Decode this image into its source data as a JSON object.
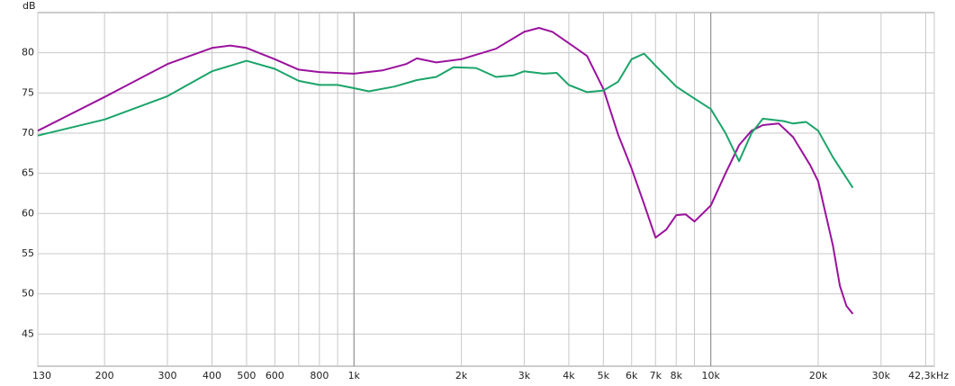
{
  "chart_data": {
    "type": "line",
    "y_label": "dB",
    "xscale": "log",
    "grid": true,
    "xlim": [
      130,
      42300
    ],
    "ylim": [
      41,
      85
    ],
    "xticks": [
      130,
      200,
      300,
      400,
      500,
      600,
      800,
      {
        "value": 1000,
        "label": "1k"
      },
      {
        "value": 2000,
        "label": "2k"
      },
      {
        "value": 3000,
        "label": "3k"
      },
      {
        "value": 4000,
        "label": "4k"
      },
      {
        "value": 5000,
        "label": "5k"
      },
      {
        "value": 6000,
        "label": "6k"
      },
      {
        "value": 7000,
        "label": "7k"
      },
      {
        "value": 8000,
        "label": "8k"
      },
      {
        "value": 10000,
        "label": "10k"
      },
      {
        "value": 20000,
        "label": "20k"
      },
      {
        "value": 30000,
        "label": "30k"
      },
      {
        "value": 42300,
        "label": "42,3kHz"
      }
    ],
    "x_minor_gridlines": [
      700,
      900,
      9000,
      40000
    ],
    "x_major_gridlines": [
      1000,
      10000
    ],
    "yticks": [
      45,
      50,
      55,
      60,
      65,
      70,
      75,
      80
    ],
    "series": [
      {
        "color": "#9b129d",
        "x": [
          130,
          200,
          300,
          400,
          450,
          500,
          600,
          700,
          800,
          1000,
          1200,
          1400,
          1500,
          1700,
          2000,
          2500,
          3000,
          3300,
          3600,
          4000,
          4500,
          5000,
          5500,
          6000,
          6500,
          7000,
          7500,
          8000,
          8500,
          9000,
          10000,
          11000,
          12000,
          13000,
          14000,
          15500,
          17000,
          19000,
          20000,
          22000,
          23000,
          24000,
          25000
        ],
        "values": [
          70.3,
          74.5,
          78.6,
          80.6,
          80.9,
          80.6,
          79.2,
          77.9,
          77.6,
          77.4,
          77.8,
          78.6,
          79.3,
          78.8,
          79.2,
          80.5,
          82.6,
          83.1,
          82.6,
          81.2,
          79.6,
          75.5,
          69.8,
          65.6,
          61.2,
          57.0,
          58.0,
          59.8,
          59.9,
          59.0,
          61.0,
          65.0,
          68.5,
          70.3,
          71.0,
          71.2,
          69.5,
          66.0,
          64.0,
          56.0,
          51.0,
          48.5,
          47.5
        ]
      },
      {
        "color": "#1ba46a",
        "x": [
          130,
          200,
          300,
          400,
          500,
          600,
          700,
          800,
          900,
          1000,
          1100,
          1300,
          1500,
          1700,
          1900,
          2200,
          2500,
          2800,
          3000,
          3400,
          3700,
          4000,
          4500,
          5000,
          5500,
          6000,
          6500,
          7000,
          8000,
          9000,
          10000,
          11000,
          12000,
          13000,
          14000,
          16000,
          17000,
          18500,
          20000,
          22000,
          25000
        ],
        "values": [
          69.7,
          71.7,
          74.6,
          77.7,
          79.0,
          78.0,
          76.5,
          76.0,
          76.0,
          75.6,
          75.2,
          75.8,
          76.6,
          77.0,
          78.2,
          78.1,
          77.0,
          77.2,
          77.7,
          77.4,
          77.5,
          76.0,
          75.1,
          75.3,
          76.4,
          79.2,
          79.9,
          78.4,
          75.8,
          74.3,
          73.0,
          70.0,
          66.5,
          70.0,
          71.8,
          71.5,
          71.2,
          71.4,
          70.3,
          67.0,
          63.2
        ]
      }
    ]
  }
}
